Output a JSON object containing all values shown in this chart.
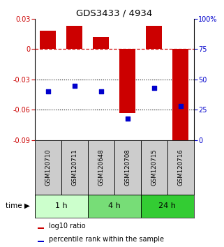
{
  "title": "GDS3433 / 4934",
  "samples": [
    "GSM120710",
    "GSM120711",
    "GSM120648",
    "GSM120708",
    "GSM120715",
    "GSM120716"
  ],
  "log10_ratio": [
    0.018,
    0.023,
    0.012,
    -0.063,
    0.023,
    -0.093
  ],
  "percentile_rank": [
    40,
    45,
    40,
    18,
    43,
    28
  ],
  "bar_color": "#cc0000",
  "dot_color": "#0000cc",
  "ylim_left": [
    -0.09,
    0.03
  ],
  "ylim_right": [
    0,
    100
  ],
  "yticks_left": [
    0.03,
    0.0,
    -0.03,
    -0.06,
    -0.09
  ],
  "yticks_right": [
    100,
    75,
    50,
    25,
    0
  ],
  "ytick_labels_left": [
    "0.03",
    "0",
    "-0.03",
    "-0.06",
    "-0.09"
  ],
  "ytick_labels_right": [
    "100%",
    "75",
    "50",
    "25",
    "0"
  ],
  "groups": [
    {
      "label": "1 h",
      "start": 0,
      "end": 2,
      "color": "#ccffcc"
    },
    {
      "label": "4 h",
      "start": 2,
      "end": 4,
      "color": "#77dd77"
    },
    {
      "label": "24 h",
      "start": 4,
      "end": 6,
      "color": "#33cc33"
    }
  ],
  "time_label": "time",
  "legend_bar_label": "log10 ratio",
  "legend_dot_label": "percentile rank within the sample",
  "hline_zero_color": "#cc0000",
  "hline_dotted_color": "#000000",
  "background_color": "#ffffff",
  "bar_width": 0.6,
  "sample_bg": "#cccccc",
  "cell_border_color": "#888888"
}
